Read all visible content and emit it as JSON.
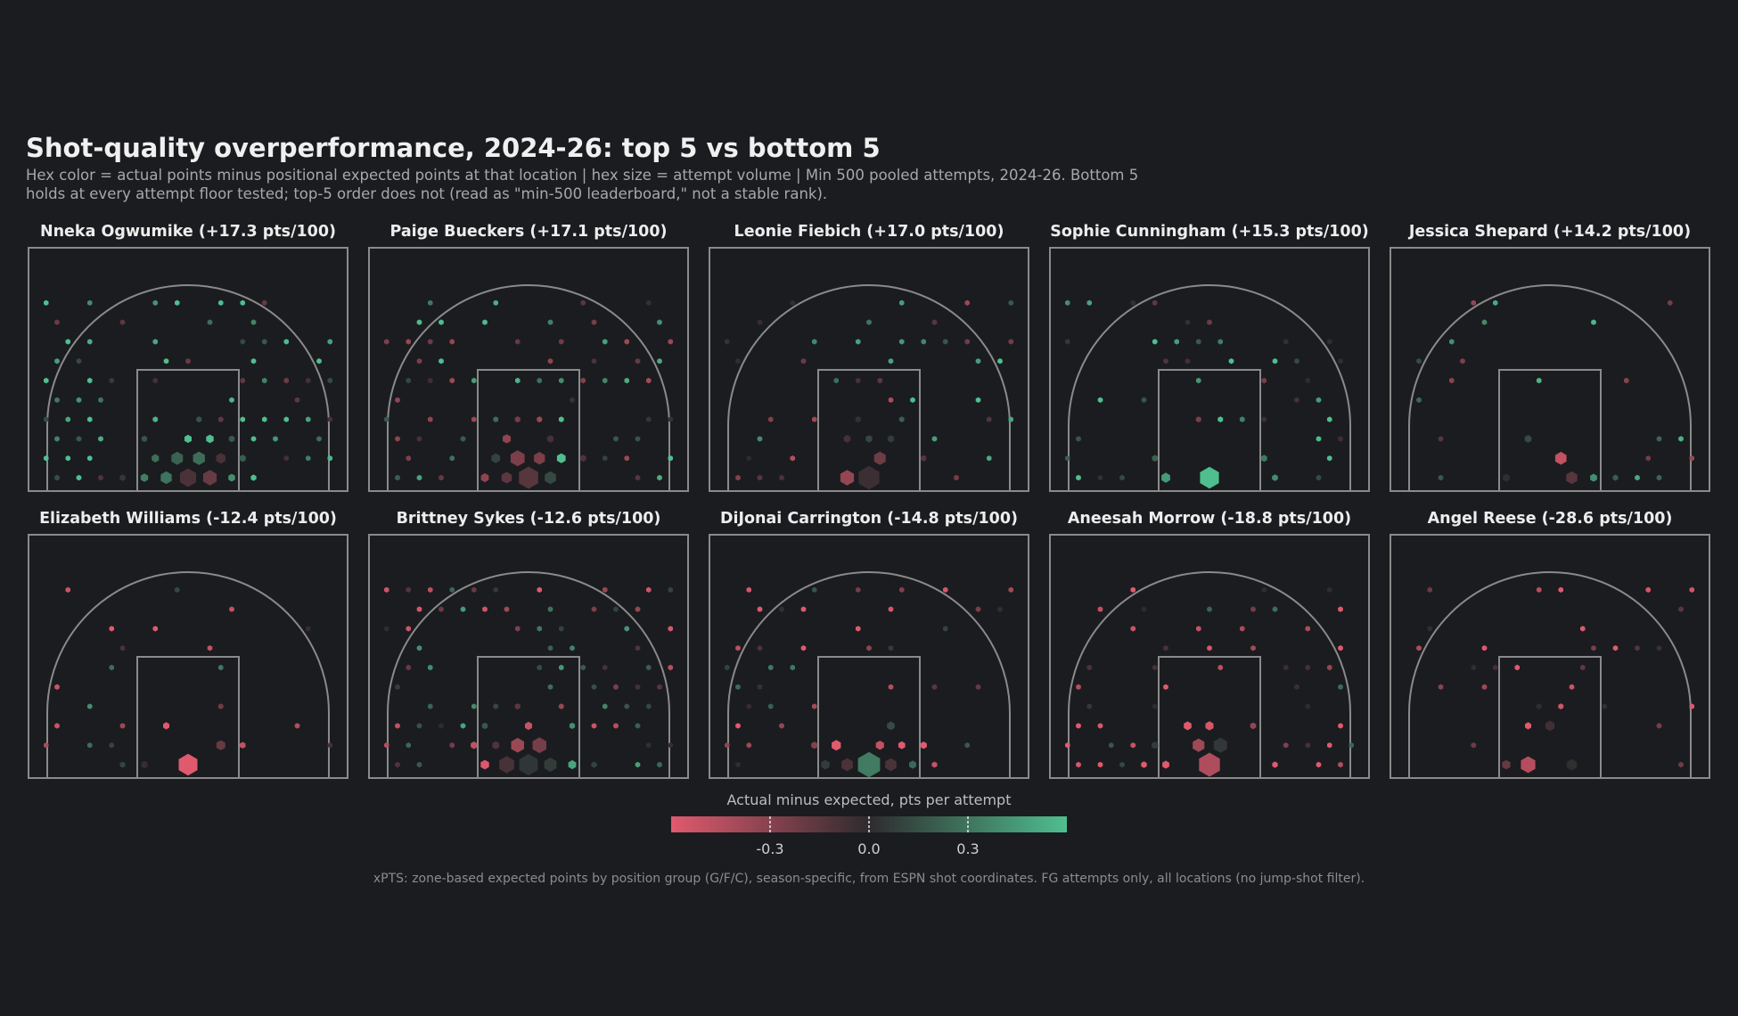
{
  "title": "Shot-quality overperformance, 2024-26: top 5 vs bottom 5",
  "subtitle": [
    "Hex color = actual points minus positional expected points at that location | hex size = attempt volume | Min 500 pooled attempts, 2024-26. Bottom 5",
    "holds at every attempt floor tested; top-5 order does not (read as \"min-500 leaderboard,\" not a stable rank)."
  ],
  "colors": {
    "negative": "#e05a6e",
    "neutral": "#2e2b2e",
    "positive": "#4fbf8f",
    "court_line": "#8a8a8a",
    "background": "#1b1c1f"
  },
  "colorbar": {
    "label": "Actual minus expected, pts per attempt",
    "ticks": [
      {
        "value": -0.3,
        "label": "-0.3"
      },
      {
        "value": 0.0,
        "label": "0.0"
      },
      {
        "value": 0.3,
        "label": "0.3"
      }
    ],
    "range": [
      -0.6,
      0.6
    ]
  },
  "footnote": "xPTS: zone-based expected points by position group (G/F/C), season-specific, from ESPN shot coordinates. FG attempts only, all locations (no jump-shot filter).",
  "chart_data": [
    {
      "type": "heatmap",
      "title": "Nneka Ogwumike  (+17.3 pts/100)",
      "tilt": 0.35,
      "density": 0.95,
      "seed": 11
    },
    {
      "type": "heatmap",
      "title": "Paige Bueckers  (+17.1 pts/100)",
      "tilt": 0.15,
      "density": 0.97,
      "seed": 23
    },
    {
      "type": "heatmap",
      "title": "Leonie Fiebich  (+17.0 pts/100)",
      "tilt": 0.1,
      "density": 0.55,
      "seed": 37
    },
    {
      "type": "heatmap",
      "title": "Sophie Cunningham  (+15.3 pts/100)",
      "tilt": 0.3,
      "density": 0.6,
      "seed": 41
    },
    {
      "type": "heatmap",
      "title": "Jessica Shepard  (+14.2 pts/100)",
      "tilt": 0.05,
      "density": 0.3,
      "seed": 53
    },
    {
      "type": "heatmap",
      "title": "Elizabeth Williams  (-12.4 pts/100)",
      "tilt": -0.15,
      "density": 0.3,
      "seed": 67
    },
    {
      "type": "heatmap",
      "title": "Brittney Sykes  (-12.6 pts/100)",
      "tilt": -0.05,
      "density": 0.95,
      "seed": 71
    },
    {
      "type": "heatmap",
      "title": "DiJonai Carrington  (-14.8 pts/100)",
      "tilt": -0.2,
      "density": 0.7,
      "seed": 83
    },
    {
      "type": "heatmap",
      "title": "Aneesah Morrow  (-18.8 pts/100)",
      "tilt": -0.3,
      "density": 0.65,
      "seed": 97
    },
    {
      "type": "heatmap",
      "title": "Angel Reese  (-28.6 pts/100)",
      "tilt": -0.5,
      "density": 0.5,
      "seed": 103
    }
  ]
}
